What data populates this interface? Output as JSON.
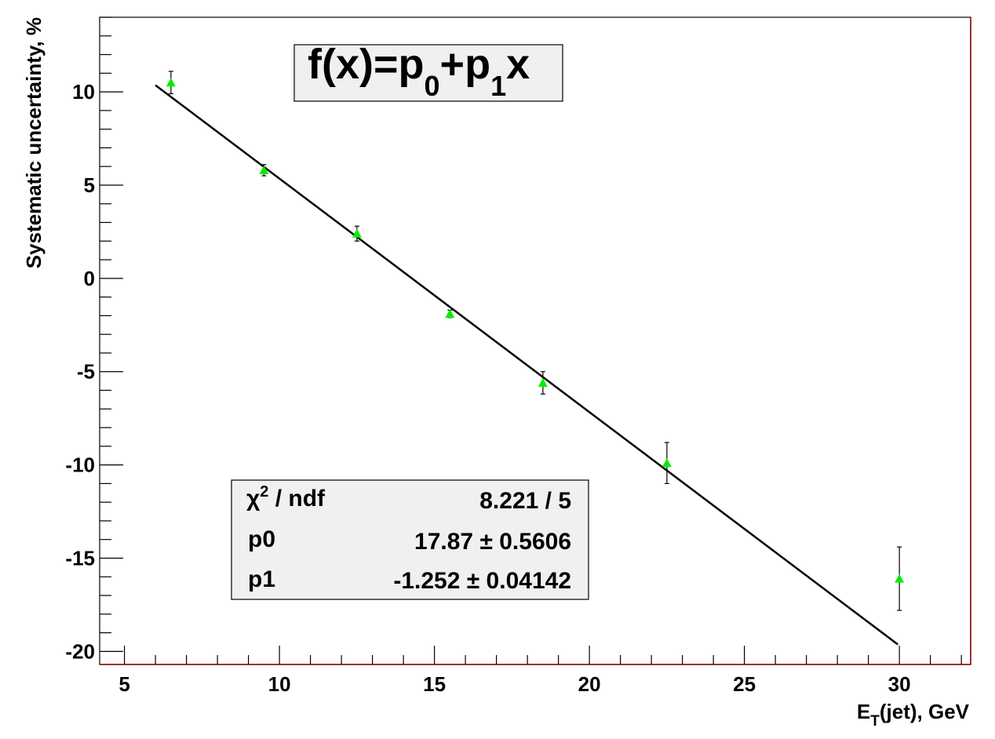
{
  "chart_data": {
    "type": "scatter",
    "title": "",
    "xlabel_main": "E",
    "xlabel_sub": "T",
    "xlabel_rest": "(jet), GeV",
    "ylabel": "Systematic uncertainty, %",
    "xlim": [
      4.2,
      32.3
    ],
    "ylim": [
      -20.7,
      14.0
    ],
    "x_ticks": [
      5,
      10,
      15,
      20,
      25,
      30
    ],
    "y_ticks": [
      10,
      5,
      0,
      -5,
      -10,
      -15,
      -20
    ],
    "x_tick_labels": [
      "5",
      "10",
      "15",
      "20",
      "25",
      "30"
    ],
    "y_tick_labels": [
      "10",
      "5",
      "0",
      "-5",
      "-10",
      "-15",
      "-20"
    ],
    "points": [
      {
        "x": 6.5,
        "y": 10.5,
        "err": 0.6
      },
      {
        "x": 9.5,
        "y": 5.8,
        "err": 0.3
      },
      {
        "x": 12.5,
        "y": 2.4,
        "err": 0.4
      },
      {
        "x": 15.5,
        "y": -1.9,
        "err": 0.2
      },
      {
        "x": 18.5,
        "y": -5.6,
        "err": 0.6
      },
      {
        "x": 22.5,
        "y": -9.9,
        "err": 1.1
      },
      {
        "x": 30.0,
        "y": -16.1,
        "err": 1.7
      }
    ],
    "fit": {
      "p0": 17.87,
      "p1": -1.252,
      "x_range": [
        6.0,
        29.95
      ]
    },
    "formula": {
      "f": "f(x)=p",
      "s0": "0",
      "plus": "+p",
      "s1": "1",
      "x": "x"
    },
    "stats": {
      "chi_label": "χ",
      "chi_sup": "2",
      "chi_rest": " / ndf",
      "chi_value": "8.221 / 5",
      "p0_label": "p0",
      "p0_value": "17.87 ± 0.5606",
      "p1_label": "p1",
      "p1_value": "-1.252 ± 0.04142"
    },
    "grid": false,
    "marker_color": "#00ee00",
    "line_color": "#000000",
    "frame_accent_color": "#8b0000"
  }
}
